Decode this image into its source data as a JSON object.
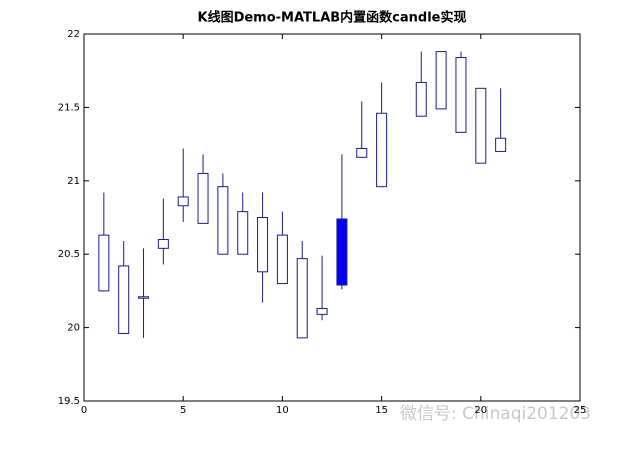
{
  "chart_data": {
    "type": "candlestick",
    "title": "K线图Demo-MATLAB内置函数candle实现",
    "x": [
      1,
      2,
      3,
      4,
      5,
      6,
      7,
      8,
      9,
      10,
      11,
      12,
      13,
      14,
      15,
      17,
      18,
      19,
      20,
      21
    ],
    "open": [
      20.25,
      19.96,
      20.2,
      20.54,
      20.83,
      20.71,
      20.5,
      20.5,
      20.38,
      20.3,
      19.93,
      20.09,
      20.74,
      21.16,
      20.96,
      21.44,
      21.49,
      21.33,
      21.12,
      21.2
    ],
    "high": [
      20.92,
      20.59,
      20.54,
      20.88,
      21.22,
      21.18,
      21.05,
      20.92,
      20.92,
      20.79,
      20.59,
      20.49,
      21.18,
      21.54,
      21.67,
      21.88,
      21.88,
      21.88,
      21.63,
      21.63
    ],
    "low": [
      20.25,
      19.96,
      19.93,
      20.43,
      20.72,
      20.71,
      20.5,
      20.5,
      20.17,
      20.3,
      19.93,
      20.05,
      20.26,
      21.16,
      20.96,
      21.44,
      21.49,
      21.33,
      21.12,
      21.2
    ],
    "close": [
      20.63,
      20.42,
      20.21,
      20.6,
      20.89,
      21.05,
      20.96,
      20.79,
      20.75,
      20.63,
      20.47,
      20.13,
      20.29,
      21.22,
      21.46,
      21.67,
      21.88,
      21.84,
      21.63,
      21.29
    ],
    "color": "#1c1c8a",
    "fill_color": "#0000ff",
    "xlim": [
      0,
      25
    ],
    "xticks": [
      0,
      5,
      10,
      15,
      20,
      25
    ],
    "ylim": [
      19.5,
      22
    ],
    "yticks": [
      19.5,
      20,
      20.5,
      21,
      21.5,
      22
    ],
    "watermark": "微信号: Chinaqi201203"
  }
}
